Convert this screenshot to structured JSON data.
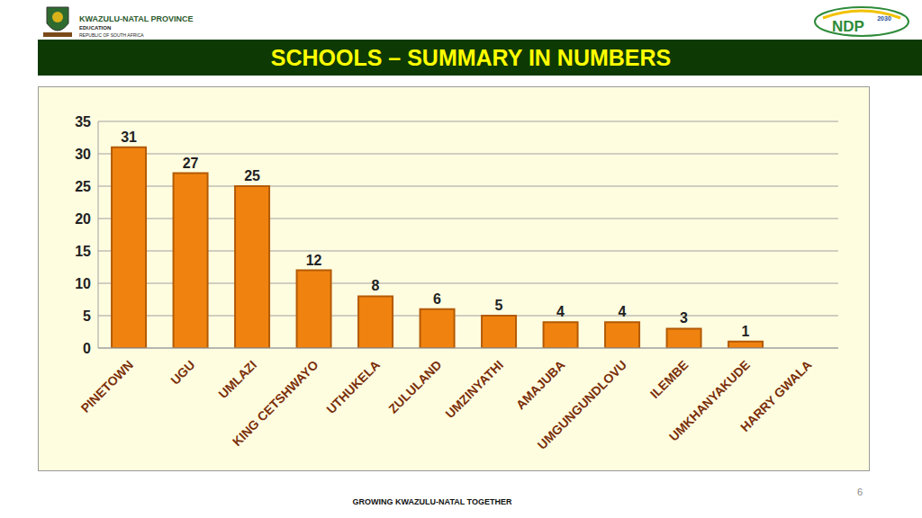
{
  "header": {
    "org_name": "KWAZULU-NATAL PROVINCE",
    "org_department": "EDUCATION",
    "org_country": "REPUBLIC OF SOUTH AFRICA",
    "logo_right_text": "NDP",
    "logo_right_year": "2030"
  },
  "footer": {
    "text": "GROWING KWAZULU-NATAL TOGETHER",
    "page": "6"
  },
  "chart_data": {
    "type": "bar",
    "title": "SCHOOLS – SUMMARY IN NUMBERS",
    "categories": [
      "PINETOWN",
      "UGU",
      "UMLAZI",
      "KING CETSHWAYO",
      "UTHUKELA",
      "ZULULAND",
      "UMZINYATHI",
      "AMAJUBA",
      "UMGUNGUNDLOVU",
      "ILEMBE",
      "UMKHANYAKUDE",
      "HARRY GWALA"
    ],
    "values": [
      31,
      27,
      25,
      12,
      8,
      6,
      5,
      4,
      4,
      3,
      1,
      0
    ],
    "color": "#f0830f",
    "ylim": [
      0,
      35
    ],
    "yticks": [
      0,
      5,
      10,
      15,
      20,
      25,
      30,
      35
    ],
    "grid": true,
    "data_labels": true
  }
}
